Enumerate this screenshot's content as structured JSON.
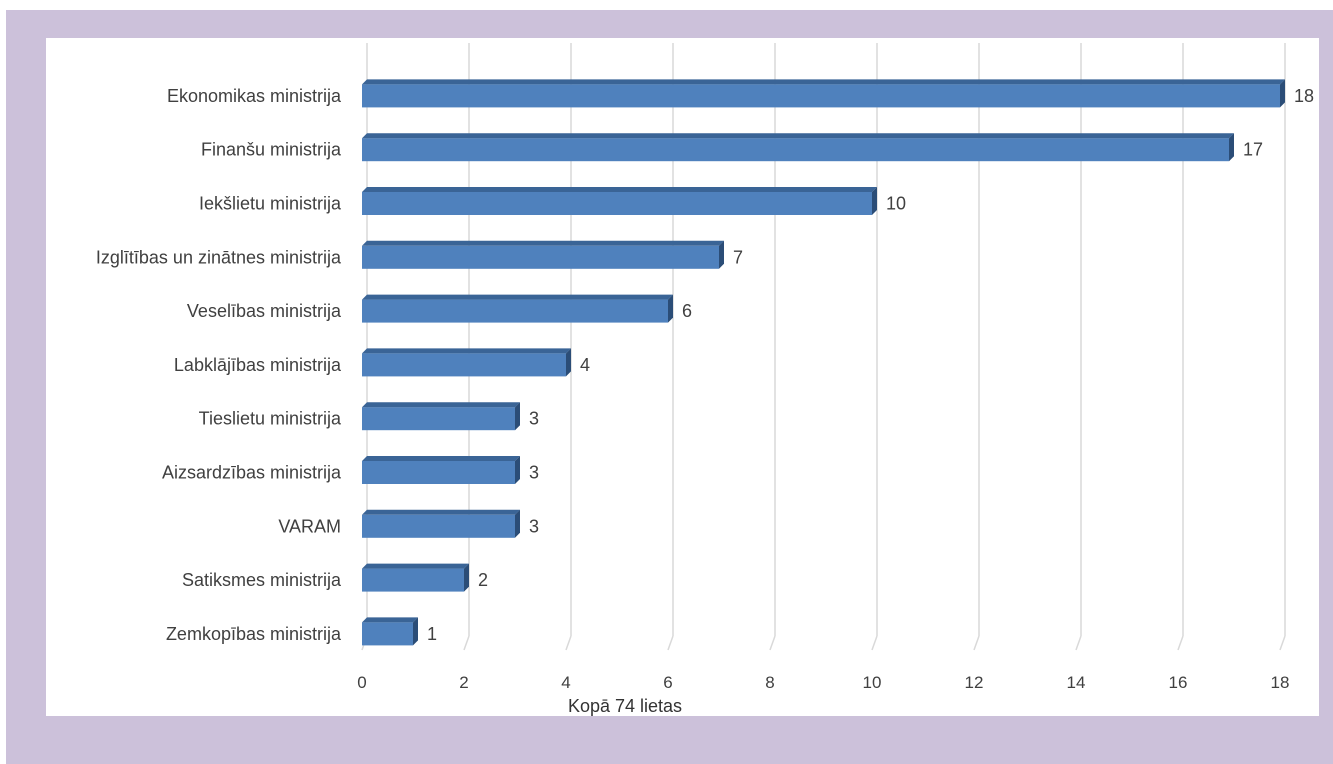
{
  "chart_data": {
    "type": "bar",
    "orientation": "horizontal",
    "categories": [
      "Ekonomikas ministrija",
      "Finanšu ministrija",
      "Iekšlietu ministrija",
      "Izglītības un zinātnes ministrija",
      "Veselības ministrija",
      "Labklājības ministrija",
      "Tieslietu ministrija",
      "Aizsardzības ministrija",
      "VARAM",
      "Satiksmes ministrija",
      "Zemkopības ministrija"
    ],
    "values": [
      18,
      17,
      10,
      7,
      6,
      4,
      3,
      3,
      3,
      2,
      1
    ],
    "xticks": [
      "0",
      "2",
      "4",
      "6",
      "8",
      "10",
      "12",
      "14",
      "16",
      "18"
    ],
    "xlim": [
      0,
      18
    ],
    "grid": true,
    "data_labels": true,
    "bar_color": "#4f81bd",
    "note": "Kopā 74 lietas"
  },
  "colors": {
    "frame": "#ccc1da",
    "bar_front": "#4f81bd",
    "bar_top": "#3a6496",
    "bar_side": "#2b4d77",
    "grid": "#d9d9d9",
    "text": "#404040"
  }
}
